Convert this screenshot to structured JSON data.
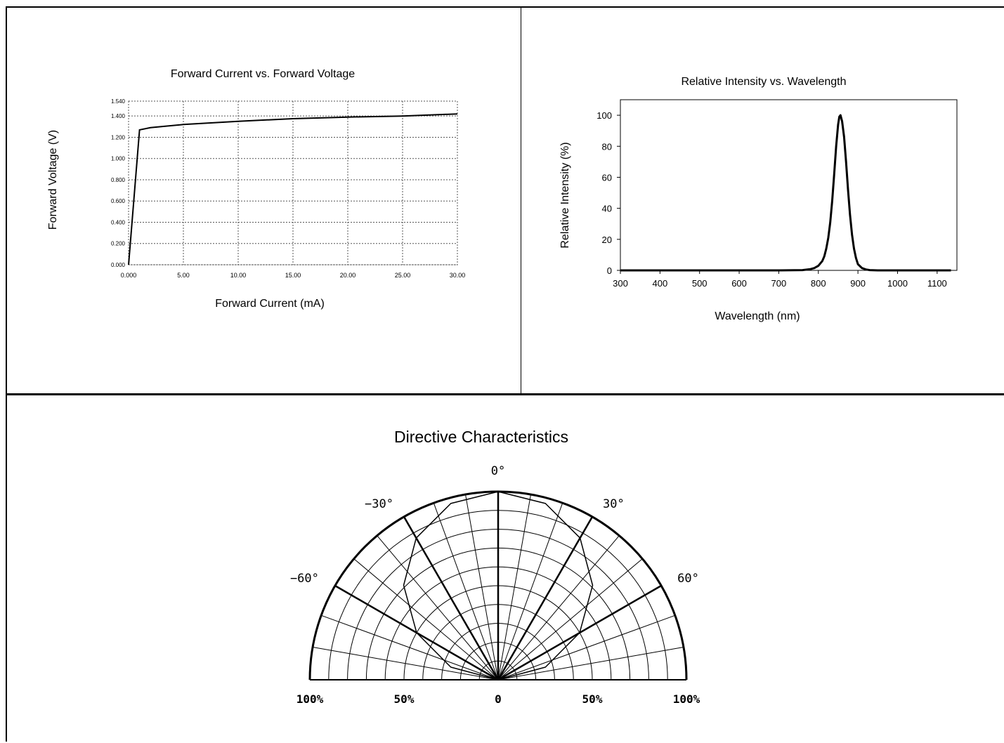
{
  "chart_data": [
    {
      "type": "line",
      "title": "Forward Current vs. Forward Voltage",
      "xlabel": "Forward Current (mA)",
      "ylabel": "Forward Voltage (V)",
      "xlim": [
        0,
        30
      ],
      "ylim": [
        0,
        1.54
      ],
      "grid": true,
      "x_ticks": [
        0,
        5,
        10,
        15,
        20,
        25,
        30
      ],
      "x_tick_labels": [
        "0.000",
        "5.00",
        "10.00",
        "15.00",
        "20.00",
        "25.00",
        "30.00"
      ],
      "y_ticks": [
        0,
        0.2,
        0.4,
        0.6,
        0.8,
        1.0,
        1.2,
        1.4,
        1.54
      ],
      "y_tick_labels": [
        "0.000",
        "0.200",
        "0.400",
        "0.600",
        "0.800",
        "1.000",
        "1.200",
        "1.400",
        "1.540"
      ],
      "series": [
        {
          "x": [
            0,
            1,
            2,
            3,
            5,
            7.5,
            10,
            15,
            20,
            25,
            30
          ],
          "y": [
            0,
            1.27,
            1.29,
            1.3,
            1.32,
            1.335,
            1.35,
            1.375,
            1.39,
            1.4,
            1.42
          ]
        }
      ]
    },
    {
      "type": "line",
      "title": "Relative Intensity vs. Wavelength",
      "xlabel": "Wavelength (nm)",
      "ylabel": "Relative Intensity (%)",
      "xlim": [
        300,
        1150
      ],
      "ylim": [
        0,
        110
      ],
      "x_ticks": [
        300,
        400,
        500,
        600,
        700,
        800,
        900,
        1000,
        1100
      ],
      "y_ticks": [
        0,
        20,
        40,
        60,
        80,
        100
      ],
      "grid": false,
      "series": [
        {
          "x": [
            300,
            700,
            760,
            780,
            790,
            800,
            810,
            815,
            820,
            825,
            830,
            835,
            840,
            845,
            850,
            853,
            856,
            860,
            865,
            870,
            875,
            880,
            885,
            890,
            895,
            900,
            910,
            920,
            930,
            950,
            1000,
            1135
          ],
          "y": [
            0,
            0,
            0.2,
            0.8,
            1.5,
            3,
            6,
            9,
            14,
            21,
            31,
            45,
            62,
            80,
            94,
            99,
            100,
            96,
            86,
            70,
            52,
            36,
            23,
            14,
            8,
            4,
            1.5,
            0.6,
            0.2,
            0,
            0,
            0
          ]
        }
      ]
    },
    {
      "type": "polar",
      "title": "Directive Characteristics",
      "angle_labels": [
        "0°",
        "30°",
        "60°",
        "−30°",
        "−60°"
      ],
      "angle_label_angles": [
        0,
        30,
        60,
        -30,
        -60
      ],
      "radial_labels": [
        "100%",
        "50%",
        "0",
        "50%",
        "100%"
      ],
      "rlim": [
        0,
        100
      ],
      "radial_rings": [
        10,
        20,
        30,
        40,
        50,
        60,
        70,
        80,
        90,
        100
      ],
      "spokes_deg": [
        -90,
        -80,
        -70,
        -60,
        -50,
        -40,
        -30,
        -20,
        -10,
        0,
        10,
        20,
        30,
        40,
        50,
        60,
        70,
        80,
        90
      ],
      "bold_spokes_deg": [
        -60,
        -30,
        0,
        30,
        60
      ],
      "series": [
        {
          "angle": [
            -90,
            -75,
            -60,
            -45,
            -30,
            -15,
            0,
            15,
            30,
            45,
            60,
            75,
            90
          ],
          "r": [
            0,
            26,
            50,
            71,
            87,
            97,
            100,
            97,
            87,
            71,
            50,
            26,
            0
          ]
        }
      ]
    }
  ]
}
